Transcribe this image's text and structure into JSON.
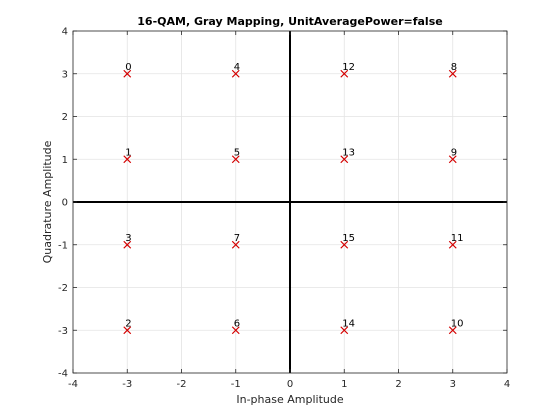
{
  "chart_data": {
    "type": "scatter",
    "title": "16-QAM, Gray Mapping, UnitAveragePower=false",
    "xlabel": "In-phase Amplitude",
    "ylabel": "Quadrature Amplitude",
    "xlim": [
      -4,
      4
    ],
    "ylim": [
      -4,
      4
    ],
    "xticks": [
      "-4",
      "-3",
      "-2",
      "-1",
      "0",
      "1",
      "2",
      "3",
      "4"
    ],
    "yticks": [
      "-4",
      "-3",
      "-2",
      "-1",
      "0",
      "1",
      "2",
      "3",
      "4"
    ],
    "grid": true,
    "marker": "x",
    "marker_color": "#d40000",
    "axis_line_color": "#000000",
    "points": [
      {
        "x": -3,
        "y": 3,
        "label": "0"
      },
      {
        "x": -3,
        "y": 1,
        "label": "1"
      },
      {
        "x": -3,
        "y": -3,
        "label": "2"
      },
      {
        "x": -3,
        "y": -1,
        "label": "3"
      },
      {
        "x": -1,
        "y": 3,
        "label": "4"
      },
      {
        "x": -1,
        "y": 1,
        "label": "5"
      },
      {
        "x": -1,
        "y": -3,
        "label": "6"
      },
      {
        "x": -1,
        "y": -1,
        "label": "7"
      },
      {
        "x": 3,
        "y": 3,
        "label": "8"
      },
      {
        "x": 3,
        "y": 1,
        "label": "9"
      },
      {
        "x": 3,
        "y": -3,
        "label": "10"
      },
      {
        "x": 3,
        "y": -1,
        "label": "11"
      },
      {
        "x": 1,
        "y": 3,
        "label": "12"
      },
      {
        "x": 1,
        "y": 1,
        "label": "13"
      },
      {
        "x": 1,
        "y": -3,
        "label": "14"
      },
      {
        "x": 1,
        "y": -1,
        "label": "15"
      }
    ]
  }
}
